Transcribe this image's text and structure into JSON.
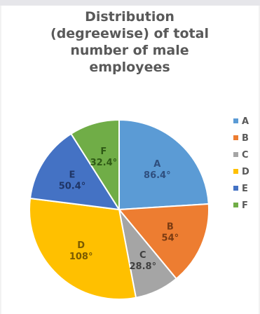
{
  "chart_data": {
    "type": "pie",
    "title_lines": [
      "Distribution",
      "(degreewise) of total",
      "number of male",
      "employees"
    ],
    "unit": "°",
    "start_angle_deg": 0,
    "slices": [
      {
        "label": "A",
        "value": 86.4,
        "value_text": "86.4°",
        "color": "#5b9bd5",
        "text_color": "#2f4f7f"
      },
      {
        "label": "B",
        "value": 54,
        "value_text": "54°",
        "color": "#ed7d31",
        "text_color": "#7a3b12"
      },
      {
        "label": "C",
        "value": 28.8,
        "value_text": "28.8°",
        "color": "#a5a5a5",
        "text_color": "#404040"
      },
      {
        "label": "D",
        "value": 108,
        "value_text": "108°",
        "color": "#ffc000",
        "text_color": "#7a5a00"
      },
      {
        "label": "E",
        "value": 50.4,
        "value_text": "50.4°",
        "color": "#4472c4",
        "text_color": "#1f3566"
      },
      {
        "label": "F",
        "value": 32.4,
        "value_text": "32.4°",
        "color": "#70ad47",
        "text_color": "#2f5a16"
      }
    ],
    "legend": [
      "A",
      "B",
      "C",
      "D",
      "E",
      "F"
    ],
    "legend_position": "right"
  }
}
